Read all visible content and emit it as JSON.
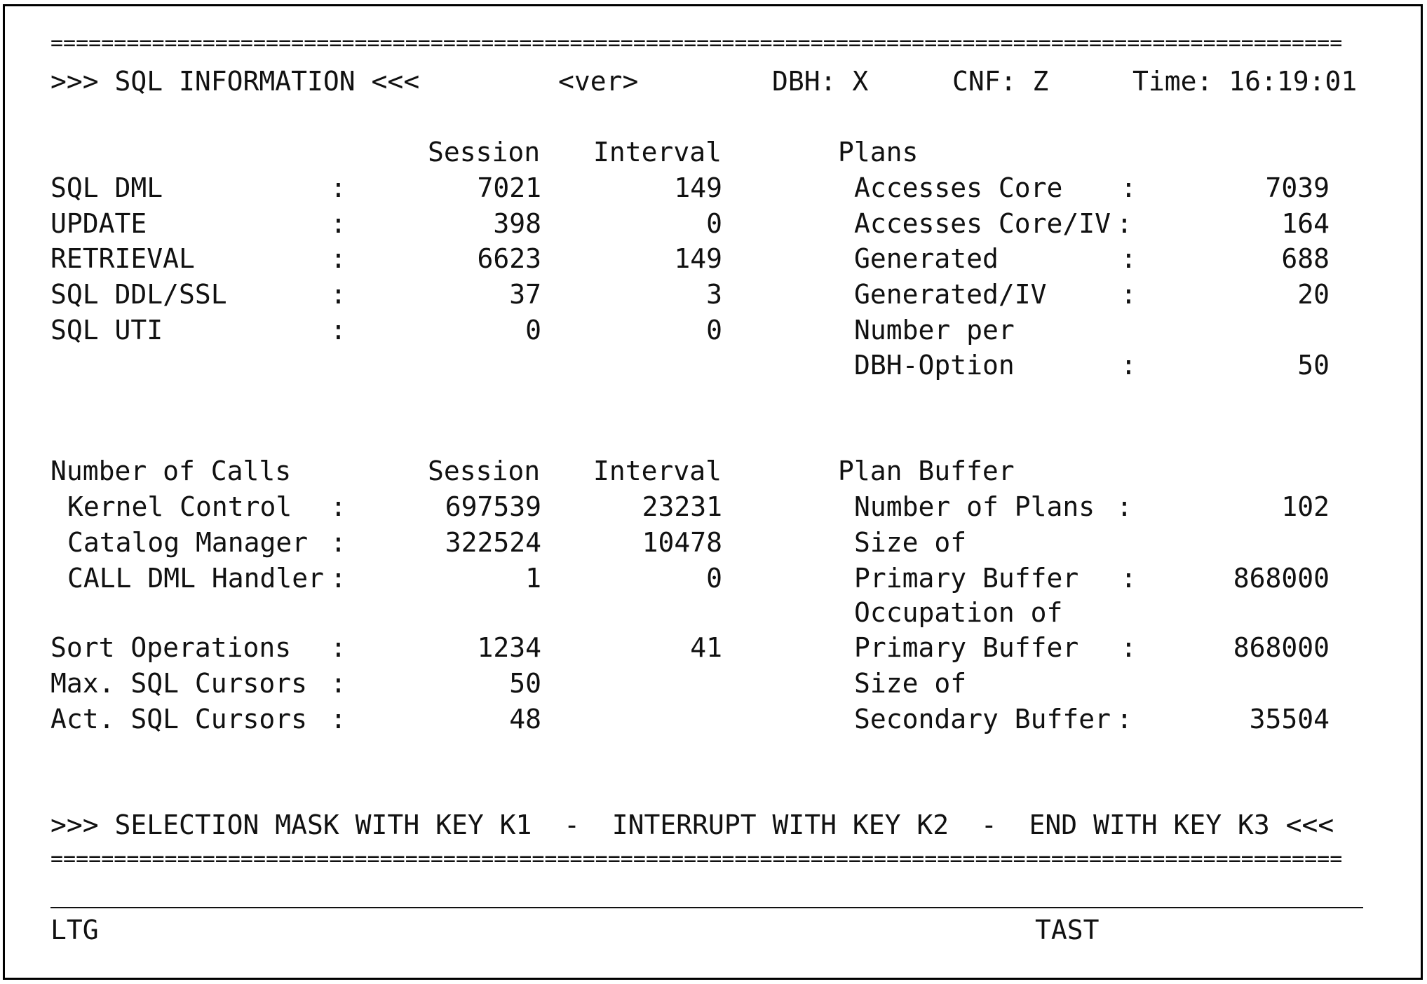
{
  "top_border": "======================================================================================================",
  "bottom_border": "======================================================================================================",
  "header": {
    "title": ">>> SQL INFORMATION <<<",
    "version": "<ver>",
    "dbh": "DBH: X",
    "cnf": "CNF: Z",
    "time": "Time: 16:19:01"
  },
  "sql_section": {
    "col_session": "Session",
    "col_interval": "Interval",
    "rows": [
      {
        "label": "SQL DML",
        "sep": ":",
        "session": "7021",
        "interval": "149"
      },
      {
        "label": "UPDATE",
        "sep": ":",
        "session": "398",
        "interval": "0"
      },
      {
        "label": "RETRIEVAL",
        "sep": ":",
        "session": "6623",
        "interval": "149"
      },
      {
        "label": "SQL DDL/SSL",
        "sep": ":",
        "session": "37",
        "interval": "3"
      },
      {
        "label": "SQL UTI",
        "sep": ":",
        "session": "0",
        "interval": "0"
      }
    ]
  },
  "plans": {
    "title": "Plans",
    "rows": [
      {
        "label": "Accesses Core",
        "sep": ":",
        "value": "7039"
      },
      {
        "label": "Accesses Core/IV",
        "sep": ":",
        "value": "164"
      },
      {
        "label": "Generated",
        "sep": ":",
        "value": "688"
      },
      {
        "label": "Generated/IV",
        "sep": ":",
        "value": "20"
      },
      {
        "label": "Number per",
        "sep": "",
        "value": ""
      },
      {
        "label": "DBH-Option",
        "sep": ":",
        "value": "50"
      }
    ]
  },
  "calls": {
    "title": "Number of Calls",
    "col_session": "Session",
    "col_interval": "Interval",
    "rows": [
      {
        "label": "Kernel Control",
        "sep": ":",
        "session": "697539",
        "interval": "23231"
      },
      {
        "label": "Catalog Manager",
        "sep": ":",
        "session": "322524",
        "interval": "10478"
      },
      {
        "label": "CALL DML Handler",
        "sep": ":",
        "session": "1",
        "interval": "0"
      }
    ]
  },
  "sort": {
    "rows": [
      {
        "label": "Sort Operations",
        "sep": ":",
        "session": "1234",
        "interval": "41"
      },
      {
        "label": "Max. SQL Cursors",
        "sep": ":",
        "session": "50",
        "interval": ""
      },
      {
        "label": "Act. SQL Cursors",
        "sep": ":",
        "session": "48",
        "interval": ""
      }
    ]
  },
  "plan_buffer": {
    "title": "Plan Buffer",
    "rows": [
      {
        "label": "Number of Plans",
        "sep": ":",
        "value": "102"
      },
      {
        "label": "Size of",
        "sep": "",
        "value": ""
      },
      {
        "label": "Primary Buffer",
        "sep": ":",
        "value": "868000"
      },
      {
        "label": "Occupation of",
        "sep": "",
        "value": ""
      },
      {
        "label": "Primary Buffer",
        "sep": ":",
        "value": "868000"
      },
      {
        "label": "Size of",
        "sep": "",
        "value": ""
      },
      {
        "label": "Secondary Buffer",
        "sep": ":",
        "value": "35504"
      }
    ]
  },
  "footer": {
    "keys_line": ">>> SELECTION MASK WITH KEY K1  -  INTERRUPT WITH KEY K2  -  END WITH KEY K3 <<<",
    "left_label": "LTG",
    "right_label": "TAST"
  }
}
